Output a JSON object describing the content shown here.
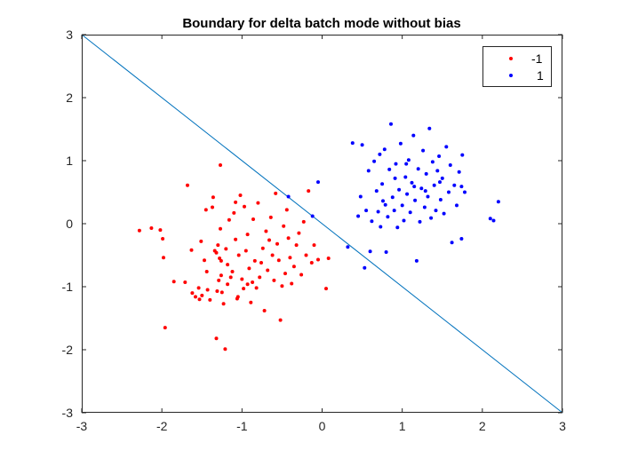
{
  "chart_data": {
    "type": "scatter",
    "title": "Boundary for delta batch mode without bias",
    "xlabel": "",
    "ylabel": "",
    "xlim": [
      -3,
      3
    ],
    "ylim": [
      -3,
      3
    ],
    "xticks": [
      -3,
      -2,
      -1,
      0,
      1,
      2,
      3
    ],
    "yticks": [
      -3,
      -2,
      -1,
      0,
      1,
      2,
      3
    ],
    "grid": false,
    "legend": {
      "placement": "top-right"
    },
    "series": [
      {
        "name": "-1",
        "color": "#ff0000",
        "marker": "dot",
        "points": [
          [
            -2.28,
            -0.11
          ],
          [
            -2.13,
            -0.07
          ],
          [
            -2.02,
            -0.1
          ],
          [
            -1.99,
            -0.24
          ],
          [
            -1.98,
            -0.54
          ],
          [
            -1.96,
            -1.65
          ],
          [
            -1.85,
            -0.92
          ],
          [
            -1.71,
            -0.93
          ],
          [
            -1.68,
            0.61
          ],
          [
            -1.63,
            -0.42
          ],
          [
            -1.62,
            -1.1
          ],
          [
            -1.58,
            -1.16
          ],
          [
            -1.54,
            -1.02
          ],
          [
            -1.53,
            -1.2
          ],
          [
            -1.51,
            -0.28
          ],
          [
            -1.5,
            -1.14
          ],
          [
            -1.47,
            -0.58
          ],
          [
            -1.45,
            0.22
          ],
          [
            -1.43,
            -1.05
          ],
          [
            -1.4,
            -1.21
          ],
          [
            -1.37,
            0.26
          ],
          [
            -1.34,
            -0.43
          ],
          [
            -1.32,
            -1.82
          ],
          [
            -1.31,
            -1.07
          ],
          [
            -1.3,
            -0.34
          ],
          [
            -1.29,
            -0.9
          ],
          [
            -1.28,
            -0.55
          ],
          [
            -1.27,
            0.93
          ],
          [
            -1.27,
            -0.08
          ],
          [
            -1.26,
            -0.59
          ],
          [
            -1.25,
            -1.09
          ],
          [
            -1.23,
            -1.27
          ],
          [
            -1.21,
            -1.99
          ],
          [
            -1.2,
            -0.4
          ],
          [
            -1.18,
            -0.96
          ],
          [
            -1.16,
            0.06
          ],
          [
            -1.14,
            -0.85
          ],
          [
            -1.12,
            -0.76
          ],
          [
            -1.1,
            0.17
          ],
          [
            -1.08,
            -0.25
          ],
          [
            -1.06,
            -1.19
          ],
          [
            -1.04,
            -0.5
          ],
          [
            -1.02,
            0.45
          ],
          [
            -1.0,
            -0.88
          ],
          [
            -0.98,
            -1.03
          ],
          [
            -0.97,
            0.27
          ],
          [
            -0.95,
            -0.43
          ],
          [
            -0.93,
            -0.17
          ],
          [
            -0.91,
            -0.71
          ],
          [
            -0.89,
            -1.25
          ],
          [
            -0.87,
            -0.93
          ],
          [
            -0.86,
            0.07
          ],
          [
            -0.84,
            -0.59
          ],
          [
            -0.82,
            -1.02
          ],
          [
            -0.8,
            0.33
          ],
          [
            -0.78,
            -0.85
          ],
          [
            -0.76,
            -0.62
          ],
          [
            -0.74,
            -0.39
          ],
          [
            -0.72,
            -1.38
          ],
          [
            -0.7,
            -0.12
          ],
          [
            -0.68,
            -0.74
          ],
          [
            -0.66,
            -0.26
          ],
          [
            -0.64,
            0.1
          ],
          [
            -0.62,
            -0.5
          ],
          [
            -0.6,
            -0.9
          ],
          [
            -0.58,
            0.48
          ],
          [
            -0.56,
            -0.32
          ],
          [
            -0.54,
            -0.58
          ],
          [
            -0.52,
            -1.53
          ],
          [
            -0.5,
            -0.99
          ],
          [
            -0.48,
            -0.04
          ],
          [
            -0.46,
            -0.79
          ],
          [
            -0.44,
            0.22
          ],
          [
            -0.42,
            -0.23
          ],
          [
            -0.4,
            -0.54
          ],
          [
            -0.38,
            -0.95
          ],
          [
            -0.35,
            -0.68
          ],
          [
            -0.32,
            -0.34
          ],
          [
            -0.29,
            -0.15
          ],
          [
            -0.26,
            -0.81
          ],
          [
            -0.23,
            0.03
          ],
          [
            -0.2,
            -0.5
          ],
          [
            -0.17,
            0.52
          ],
          [
            -0.13,
            -0.62
          ],
          [
            -0.1,
            -0.34
          ],
          [
            -0.05,
            -0.57
          ],
          [
            0.05,
            -1.03
          ],
          [
            0.08,
            -0.55
          ],
          [
            -1.36,
            0.42
          ],
          [
            -1.08,
            0.34
          ],
          [
            -1.05,
            -1.16
          ],
          [
            -0.93,
            -0.96
          ],
          [
            -1.44,
            -0.76
          ],
          [
            -1.32,
            -0.46
          ],
          [
            -1.18,
            -0.65
          ],
          [
            -1.26,
            -0.82
          ]
        ]
      },
      {
        "name": "1",
        "color": "#0000ff",
        "marker": "dot",
        "points": [
          [
            -0.42,
            0.43
          ],
          [
            -0.12,
            0.12
          ],
          [
            -0.05,
            0.66
          ],
          [
            0.32,
            -0.37
          ],
          [
            0.38,
            1.28
          ],
          [
            0.45,
            0.12
          ],
          [
            0.48,
            0.43
          ],
          [
            0.5,
            1.25
          ],
          [
            0.53,
            -0.7
          ],
          [
            0.55,
            0.21
          ],
          [
            0.58,
            0.84
          ],
          [
            0.6,
            -0.44
          ],
          [
            0.62,
            0.04
          ],
          [
            0.65,
            0.99
          ],
          [
            0.68,
            0.52
          ],
          [
            0.7,
            0.19
          ],
          [
            0.72,
            1.1
          ],
          [
            0.73,
            -0.05
          ],
          [
            0.75,
            0.63
          ],
          [
            0.76,
            0.36
          ],
          [
            0.78,
            1.18
          ],
          [
            0.8,
            -0.45
          ],
          [
            0.82,
            0.11
          ],
          [
            0.84,
            0.86
          ],
          [
            0.86,
            1.58
          ],
          [
            0.88,
            0.42
          ],
          [
            0.9,
            0.21
          ],
          [
            0.92,
            0.95
          ],
          [
            0.94,
            -0.06
          ],
          [
            0.96,
            0.54
          ],
          [
            0.98,
            1.27
          ],
          [
            1.0,
            0.29
          ],
          [
            1.02,
            0.05
          ],
          [
            1.04,
            0.74
          ],
          [
            1.06,
            0.47
          ],
          [
            1.08,
            1.01
          ],
          [
            1.1,
            0.18
          ],
          [
            1.12,
            0.65
          ],
          [
            1.14,
            1.4
          ],
          [
            1.16,
            0.37
          ],
          [
            1.18,
            -0.59
          ],
          [
            1.2,
            0.87
          ],
          [
            1.22,
            0.03
          ],
          [
            1.24,
            0.56
          ],
          [
            1.26,
            1.16
          ],
          [
            1.28,
            0.26
          ],
          [
            1.3,
            0.79
          ],
          [
            1.32,
            0.43
          ],
          [
            1.34,
            1.51
          ],
          [
            1.36,
            0.09
          ],
          [
            1.38,
            0.98
          ],
          [
            1.4,
            0.61
          ],
          [
            1.42,
            0.21
          ],
          [
            1.44,
            0.84
          ],
          [
            1.46,
            1.07
          ],
          [
            1.48,
            0.38
          ],
          [
            1.5,
            0.72
          ],
          [
            1.52,
            0.16
          ],
          [
            1.55,
            1.22
          ],
          [
            1.58,
            0.5
          ],
          [
            1.6,
            0.93
          ],
          [
            1.62,
            -0.3
          ],
          [
            1.65,
            0.61
          ],
          [
            1.68,
            0.29
          ],
          [
            1.71,
            0.82
          ],
          [
            1.74,
            0.59
          ],
          [
            1.74,
            -0.24
          ],
          [
            1.75,
            1.09
          ],
          [
            1.78,
            0.5
          ],
          [
            2.1,
            0.08
          ],
          [
            2.14,
            0.05
          ],
          [
            2.2,
            0.35
          ],
          [
            1.05,
            0.95
          ],
          [
            1.29,
            0.52
          ],
          [
            1.47,
            0.66
          ],
          [
            0.91,
            0.72
          ],
          [
            1.15,
            0.59
          ],
          [
            0.79,
            0.3
          ]
        ]
      }
    ],
    "boundary": {
      "color": "#0072bd",
      "x": [
        -3,
        3
      ],
      "y": [
        3,
        -3
      ]
    }
  }
}
